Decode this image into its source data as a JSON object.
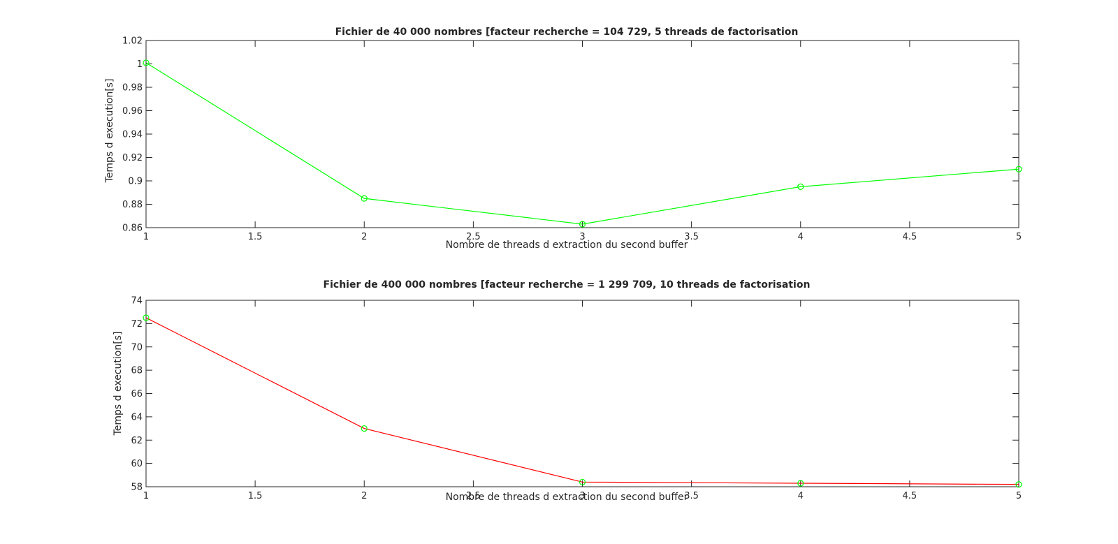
{
  "chart_data": [
    {
      "type": "line",
      "title": "Fichier de 40 000 nombres [facteur recherche = 104 729, 5 threads de factorisation",
      "xlabel": "Nombre de threads d extraction du second buffer",
      "ylabel": "Temps d execution[s]",
      "xlim": [
        1,
        5
      ],
      "ylim": [
        0.86,
        1.02
      ],
      "xticks": [
        1,
        1.5,
        2,
        2.5,
        3,
        3.5,
        4,
        4.5,
        5
      ],
      "xtick_labels": [
        "1",
        "1.5",
        "2",
        "2.5",
        "3",
        "3.5",
        "4",
        "4.5",
        "5"
      ],
      "yticks": [
        0.86,
        0.88,
        0.9,
        0.92,
        0.94,
        0.96,
        0.98,
        1,
        1.02
      ],
      "ytick_labels": [
        "0.86",
        "0.88",
        "0.9",
        "0.92",
        "0.94",
        "0.96",
        "0.98",
        "1",
        "1.02"
      ],
      "grid": false,
      "series": [
        {
          "x": [
            1,
            2,
            3,
            4,
            5
          ],
          "values": [
            1.001,
            0.885,
            0.863,
            0.895,
            0.91
          ],
          "line_color": "#00ff00",
          "marker": "circle",
          "marker_color": "#00ff00"
        }
      ]
    },
    {
      "type": "line",
      "title": "Fichier de 400 000 nombres [facteur recherche = 1 299 709, 10 threads de factorisation",
      "xlabel": "Nombre de threads d extraction du second buffer",
      "ylabel": "Temps d execution[s]",
      "xlim": [
        1,
        5
      ],
      "ylim": [
        58,
        74
      ],
      "xticks": [
        1,
        1.5,
        2,
        2.5,
        3,
        3.5,
        4,
        4.5,
        5
      ],
      "xtick_labels": [
        "1",
        "1.5",
        "2",
        "2.5",
        "3",
        "3.5",
        "4",
        "4.5",
        "5"
      ],
      "yticks": [
        58,
        60,
        62,
        64,
        66,
        68,
        70,
        72,
        74
      ],
      "ytick_labels": [
        "58",
        "60",
        "62",
        "64",
        "66",
        "68",
        "70",
        "72",
        "74"
      ],
      "grid": false,
      "series": [
        {
          "x": [
            1,
            2,
            3,
            4,
            5
          ],
          "values": [
            72.5,
            63.0,
            58.4,
            58.3,
            58.2
          ],
          "line_color": "#ff0000",
          "marker": "circle",
          "marker_color": "#00ff00"
        }
      ]
    }
  ]
}
